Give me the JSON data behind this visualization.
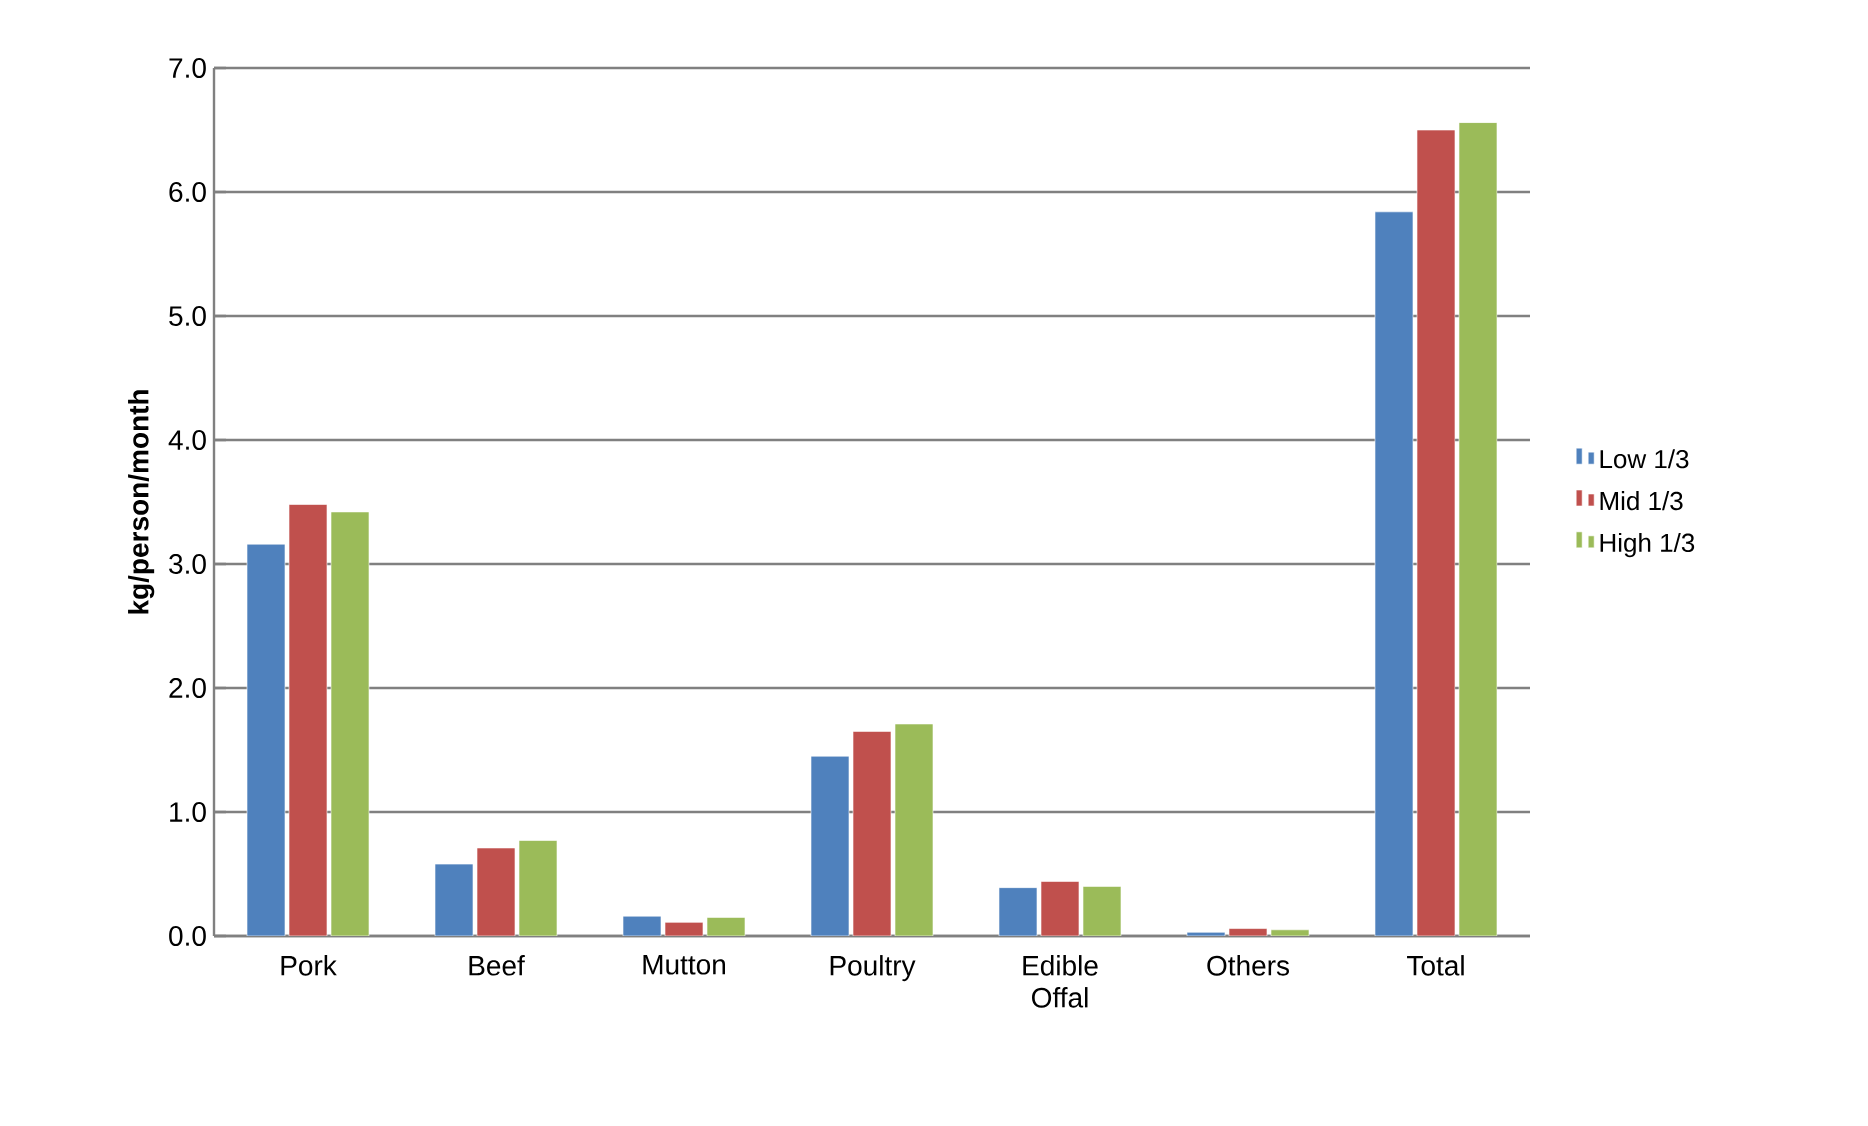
{
  "chart_data": {
    "type": "bar",
    "ylabel": "kg/person/month",
    "categories": [
      "Pork",
      "Beef",
      "Mutton",
      "Poultry",
      "Edible Offal",
      "Others",
      "Total"
    ],
    "series": [
      {
        "name": "Low 1/3",
        "color": "#4f81bd",
        "values": [
          3.16,
          0.58,
          0.16,
          1.45,
          0.39,
          0.03,
          5.84
        ]
      },
      {
        "name": "Mid 1/3",
        "color": "#c0504d",
        "values": [
          3.48,
          0.71,
          0.11,
          1.65,
          0.44,
          0.06,
          6.5
        ]
      },
      {
        "name": "High 1/3",
        "color": "#9bbb59",
        "values": [
          3.42,
          0.77,
          0.15,
          1.71,
          0.4,
          0.05,
          6.56
        ]
      }
    ],
    "ylim": [
      0,
      7
    ],
    "yticks": [
      {
        "value": 0,
        "label": "0.0"
      },
      {
        "value": 1,
        "label": "1.0"
      },
      {
        "value": 2,
        "label": "2.0"
      },
      {
        "value": 3,
        "label": "3.0"
      },
      {
        "value": 4,
        "label": "4.0"
      },
      {
        "value": 5,
        "label": "5.0"
      },
      {
        "value": 6,
        "label": "6.0"
      },
      {
        "value": 7,
        "label": "7.0"
      }
    ],
    "grid": "y",
    "legend": "right"
  }
}
